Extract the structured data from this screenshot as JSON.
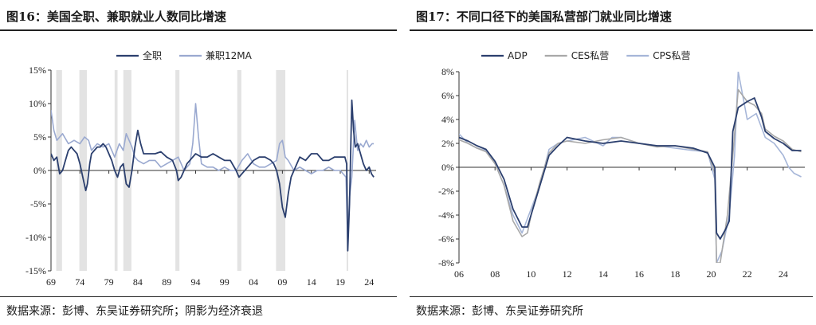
{
  "figures": [
    {
      "title": "图16：美国全职、兼职就业人数同比增速",
      "source": "数据来源：彭博、东吴证券研究所；阴影为经济衰退"
    },
    {
      "title": "图17：不同口径下的美国私营部门就业同比增速",
      "source": "数据来源：彭博、东吴证券研究所"
    }
  ],
  "chart_data": [
    {
      "type": "line",
      "title": "",
      "xlabel": "",
      "ylabel": "",
      "x_ticks": [
        "69",
        "74",
        "79",
        "84",
        "89",
        "94",
        "99",
        "04",
        "09",
        "14",
        "19",
        "24"
      ],
      "y_ticks": [
        "15%",
        "10%",
        "5%",
        "0%",
        "-5%",
        "-10%",
        "-15%"
      ],
      "xlim": [
        1969,
        2025.2
      ],
      "ylim": [
        -15,
        15
      ],
      "legend": "top-center",
      "grid": false,
      "recessions": [
        [
          1969.9,
          1970.9
        ],
        [
          1973.9,
          1975.2
        ],
        [
          1980.0,
          1980.5
        ],
        [
          1981.5,
          1982.9
        ],
        [
          1990.5,
          1991.2
        ],
        [
          2001.2,
          2001.9
        ],
        [
          2007.9,
          2009.5
        ],
        [
          2020.1,
          2020.3
        ]
      ],
      "series": [
        {
          "name": "全职",
          "color": "#2b3f6e",
          "x": [
            1969,
            1969.5,
            1970,
            1970.5,
            1971,
            1971.5,
            1972,
            1972.5,
            1973,
            1973.5,
            1974,
            1974.5,
            1975,
            1975.3,
            1975.7,
            1976,
            1976.5,
            1977,
            1977.5,
            1978,
            1978.5,
            1979,
            1979.5,
            1980,
            1980.5,
            1981,
            1981.5,
            1982,
            1982.5,
            1983,
            1983.5,
            1984,
            1984.5,
            1985,
            1986,
            1987,
            1988,
            1989,
            1990,
            1990.7,
            1991,
            1991.5,
            1992,
            1992.5,
            1993,
            1994,
            1995,
            1996,
            1997,
            1998,
            1999,
            2000,
            2001,
            2001.5,
            2002,
            2002.5,
            2003,
            2003.5,
            2004,
            2005,
            2006,
            2007,
            2007.5,
            2008,
            2008.5,
            2009,
            2009.5,
            2010,
            2010.5,
            2011,
            2012,
            2013,
            2014,
            2015,
            2016,
            2017,
            2018,
            2019,
            2019.8,
            2020.1,
            2020.3,
            2020.6,
            2021,
            2021.3,
            2021.6,
            2022,
            2022.5,
            2023,
            2023.5,
            2024,
            2024.4,
            2024.8
          ],
          "values": [
            2.5,
            1.5,
            2.0,
            -0.5,
            0.0,
            1.5,
            3.0,
            3.5,
            3.0,
            2.5,
            1.0,
            -1.0,
            -3.0,
            -2.0,
            1.0,
            2.5,
            3.0,
            3.5,
            3.5,
            4.0,
            3.5,
            2.5,
            1.5,
            0.0,
            -1.0,
            0.5,
            1.0,
            -2.0,
            -2.5,
            0.0,
            3.5,
            6.0,
            4.0,
            2.5,
            2.5,
            2.5,
            2.8,
            2.0,
            1.5,
            0.0,
            -1.5,
            -1.0,
            0.0,
            1.0,
            1.5,
            2.5,
            2.0,
            2.0,
            2.5,
            2.0,
            1.5,
            1.5,
            0.0,
            -1.0,
            -0.5,
            0.0,
            0.5,
            1.0,
            1.5,
            2.0,
            2.0,
            1.5,
            1.0,
            0.0,
            -2.0,
            -5.5,
            -7.0,
            -3.5,
            -1.0,
            0.0,
            2.0,
            1.5,
            2.5,
            2.5,
            1.5,
            1.5,
            2.0,
            2.0,
            2.0,
            1.0,
            -12.0,
            -5.0,
            10.5,
            6.0,
            3.5,
            4.0,
            2.5,
            1.0,
            0.0,
            0.5,
            -0.5,
            -1.0
          ]
        },
        {
          "name": "兼职12MA",
          "color": "#9aa9d0",
          "x": [
            1969,
            1969.5,
            1970,
            1970.5,
            1971,
            1972,
            1973,
            1974,
            1974.8,
            1975.5,
            1976,
            1977,
            1978,
            1979,
            1980,
            1980.8,
            1981.5,
            1982,
            1982.5,
            1983,
            1983.5,
            1984,
            1985,
            1986,
            1987,
            1988,
            1989,
            1990,
            1991,
            1992,
            1993,
            1993.5,
            1994,
            1994.5,
            1995,
            1996,
            1997,
            1998,
            1999,
            2000,
            2001,
            2002,
            2003,
            2004,
            2005,
            2006,
            2007,
            2008,
            2008.5,
            2009,
            2009.5,
            2010,
            2011,
            2012,
            2013,
            2014,
            2015,
            2016,
            2017,
            2018,
            2019,
            2020,
            2020.3,
            2020.6,
            2021,
            2021.5,
            2022,
            2022.5,
            2023,
            2023.5,
            2024,
            2024.5,
            2024.8
          ],
          "values": [
            9.0,
            6.0,
            4.5,
            5.0,
            5.5,
            4.0,
            4.5,
            4.0,
            5.0,
            4.5,
            3.0,
            4.0,
            3.5,
            4.0,
            2.0,
            4.0,
            3.0,
            5.5,
            4.5,
            3.5,
            2.0,
            1.5,
            1.0,
            1.5,
            1.5,
            0.5,
            1.0,
            1.5,
            2.0,
            0.0,
            1.0,
            4.0,
            10.0,
            5.0,
            1.0,
            0.5,
            0.5,
            0.0,
            0.5,
            0.0,
            0.0,
            1.5,
            2.5,
            1.0,
            0.5,
            0.5,
            1.0,
            1.5,
            4.0,
            4.5,
            2.0,
            1.5,
            0.0,
            0.5,
            0.0,
            -0.5,
            0.0,
            0.0,
            0.5,
            0.0,
            0.0,
            -1.0,
            -11.0,
            -4.0,
            -1.0,
            7.5,
            3.0,
            4.0,
            3.5,
            4.5,
            3.5,
            4.0,
            4.0
          ]
        }
      ]
    },
    {
      "type": "line",
      "title": "",
      "xlabel": "",
      "ylabel": "",
      "x_ticks": [
        "06",
        "08",
        "10",
        "12",
        "14",
        "16",
        "18",
        "20",
        "22",
        "24"
      ],
      "y_ticks": [
        "8%",
        "6%",
        "4%",
        "2%",
        "0%",
        "-2%",
        "-4%",
        "-6%",
        "-8%"
      ],
      "xlim": [
        2006,
        2025.2
      ],
      "ylim": [
        -8,
        8
      ],
      "legend": "top-center",
      "grid": false,
      "series": [
        {
          "name": "ADP",
          "color": "#2b3f6e",
          "x": [
            2006,
            2006.5,
            2007,
            2007.5,
            2008,
            2008.5,
            2009,
            2009.5,
            2009.8,
            2010,
            2010.5,
            2011,
            2011.5,
            2012,
            2013,
            2014,
            2015,
            2016,
            2017,
            2018,
            2019,
            2019.8,
            2020.2,
            2020.3,
            2020.5,
            2020.8,
            2021,
            2021.2,
            2021.5,
            2022,
            2022.4,
            2022.8,
            2023,
            2023.5,
            2024,
            2024.5,
            2025
          ],
          "values": [
            2.5,
            2.2,
            1.8,
            1.5,
            0.5,
            -1.0,
            -3.5,
            -5.0,
            -5.0,
            -4.0,
            -1.5,
            1.0,
            1.8,
            2.5,
            2.2,
            2.0,
            2.2,
            2.0,
            1.8,
            1.8,
            1.6,
            1.2,
            0.0,
            -5.5,
            -6.0,
            -5.2,
            -4.5,
            3.0,
            5.0,
            5.5,
            5.8,
            4.2,
            3.0,
            2.4,
            2.0,
            1.4,
            1.4
          ]
        },
        {
          "name": "CES私营",
          "color": "#a8a8a8",
          "x": [
            2006,
            2006.5,
            2007,
            2007.5,
            2008,
            2008.5,
            2009,
            2009.5,
            2009.8,
            2010,
            2010.5,
            2011,
            2011.5,
            2012,
            2013,
            2014,
            2015,
            2016,
            2017,
            2018,
            2019,
            2019.8,
            2020.2,
            2020.3,
            2020.5,
            2020.9,
            2021.2,
            2021.5,
            2022,
            2022.4,
            2022.8,
            2023,
            2023.5,
            2024,
            2024.5,
            2025
          ],
          "values": [
            2.3,
            2.0,
            1.6,
            1.3,
            0.3,
            -1.5,
            -4.5,
            -5.8,
            -5.5,
            -4.0,
            -1.2,
            1.2,
            2.0,
            2.2,
            2.0,
            2.3,
            2.5,
            2.0,
            1.7,
            1.8,
            1.5,
            1.3,
            -0.5,
            -8.0,
            -8.0,
            -4.0,
            1.0,
            6.5,
            5.5,
            5.2,
            4.5,
            3.2,
            2.6,
            2.2,
            1.5,
            1.3
          ]
        },
        {
          "name": "CPS私营",
          "color": "#a6b6d8",
          "x": [
            2006,
            2006.5,
            2007,
            2007.5,
            2008,
            2008.5,
            2009,
            2009.5,
            2010,
            2010.5,
            2011,
            2011.5,
            2012,
            2013,
            2014,
            2014.5,
            2015,
            2016,
            2017,
            2018,
            2019,
            2019.8,
            2020.2,
            2020.3,
            2020.6,
            2021,
            2021.3,
            2021.5,
            2022,
            2022.5,
            2023,
            2023.5,
            2024,
            2024.3,
            2024.6,
            2025
          ],
          "values": [
            2.8,
            2.0,
            1.6,
            1.4,
            0.3,
            -1.5,
            -4.0,
            -5.5,
            -3.5,
            -1.5,
            1.5,
            2.0,
            2.2,
            2.5,
            1.8,
            2.5,
            2.5,
            2.0,
            1.8,
            1.6,
            1.4,
            1.3,
            -1.0,
            -8.0,
            -7.0,
            -4.0,
            1.0,
            8.0,
            4.0,
            4.5,
            2.5,
            2.0,
            1.0,
            0.0,
            -0.5,
            -0.8
          ]
        }
      ]
    }
  ]
}
